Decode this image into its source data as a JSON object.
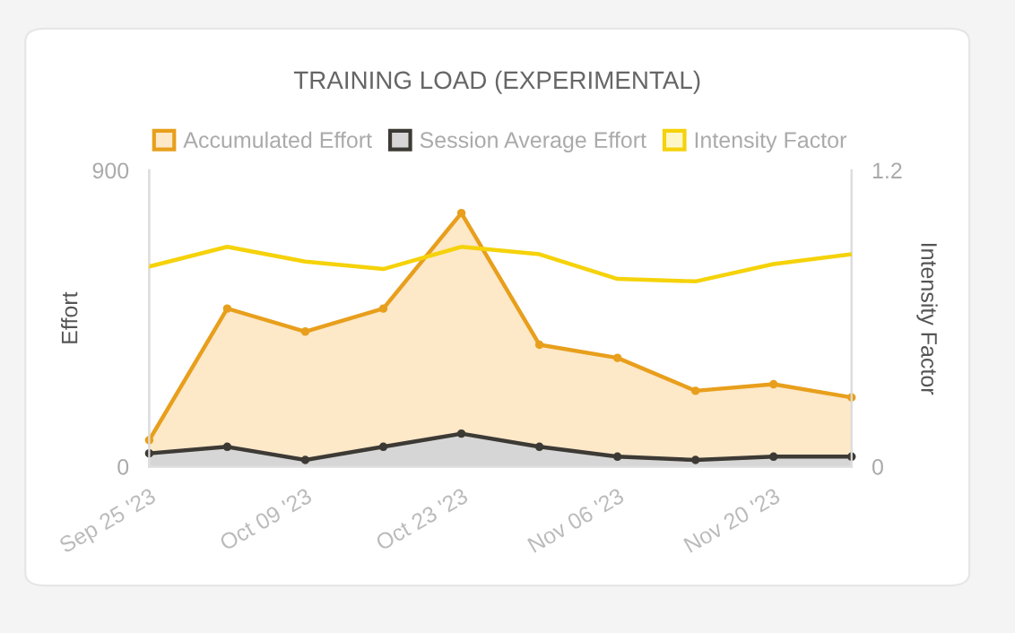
{
  "chart_data": {
    "type": "area",
    "title": "TRAINING LOAD (EXPERIMENTAL)",
    "ylabel": "Effort",
    "y2label": "Intensity Factor",
    "x": [
      "2023-09-25",
      "2023-10-02",
      "2023-10-09",
      "2023-10-16",
      "2023-10-23",
      "2023-10-30",
      "2023-11-06",
      "2023-11-13",
      "2023-11-20",
      "2023-11-27"
    ],
    "series": [
      {
        "name": "Accumulated Effort",
        "marker": "circle",
        "color": "#e89f1c",
        "values": [
          80,
          480,
          410,
          480,
          770,
          370,
          330,
          230,
          250,
          210
        ]
      },
      {
        "name": "Session Average Effort",
        "marker": "circle",
        "color": "#3d3a35",
        "values": [
          40,
          60,
          20,
          60,
          100,
          60,
          30,
          20,
          30,
          30
        ]
      },
      {
        "name": "Intensity Factor",
        "type": "line",
        "axis": "y2",
        "color": "#f5d20a",
        "values": [
          0.81,
          0.89,
          0.83,
          0.8,
          0.89,
          0.86,
          0.76,
          0.75,
          0.82,
          0.86
        ]
      }
    ],
    "xlim": [
      "2023-09-25",
      "2023-11-27"
    ],
    "xticks": [
      {
        "value": "2023-09-25",
        "label": "Sep 25 '23"
      },
      {
        "value": "2023-10-09",
        "label": "Oct 09 '23"
      },
      {
        "value": "2023-10-23",
        "label": "Oct 23 '23"
      },
      {
        "value": "2023-11-06",
        "label": "Nov 06 '23"
      },
      {
        "value": "2023-11-20",
        "label": "Nov 20 '23"
      }
    ],
    "ylim": [
      0,
      900
    ],
    "yticks": [
      0,
      900
    ],
    "y2lim": [
      0,
      1.2
    ],
    "y2ticks": [
      0,
      1.2
    ],
    "legend": "top",
    "line_style": "solid"
  }
}
